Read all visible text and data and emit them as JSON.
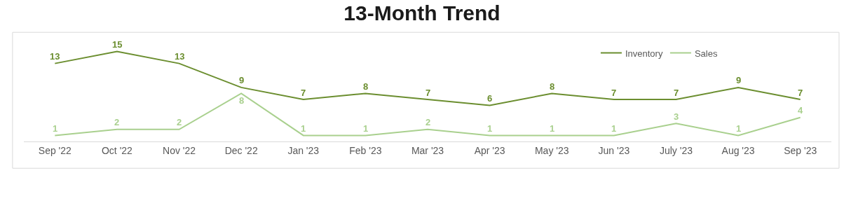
{
  "chart_data": {
    "type": "line",
    "title": "13-Month Trend",
    "categories": [
      "Sep '22",
      "Oct '22",
      "Nov '22",
      "Dec '22",
      "Jan '23",
      "Feb '23",
      "Mar '23",
      "Apr '23",
      "May '23",
      "Jun '23",
      "July '23",
      "Aug '23",
      "Sep '23"
    ],
    "series": [
      {
        "name": "Inventory",
        "color": "#6b8e2f",
        "values": [
          13,
          15,
          13,
          9,
          7,
          8,
          7,
          6,
          8,
          7,
          7,
          9,
          7
        ]
      },
      {
        "name": "Sales",
        "color": "#a9d08e",
        "values": [
          1,
          2,
          2,
          8,
          1,
          1,
          2,
          1,
          1,
          1,
          3,
          1,
          4
        ]
      }
    ],
    "tick_labels": "x",
    "data_labels": true,
    "legend": "top right",
    "grid": false,
    "line_style": "solid"
  }
}
